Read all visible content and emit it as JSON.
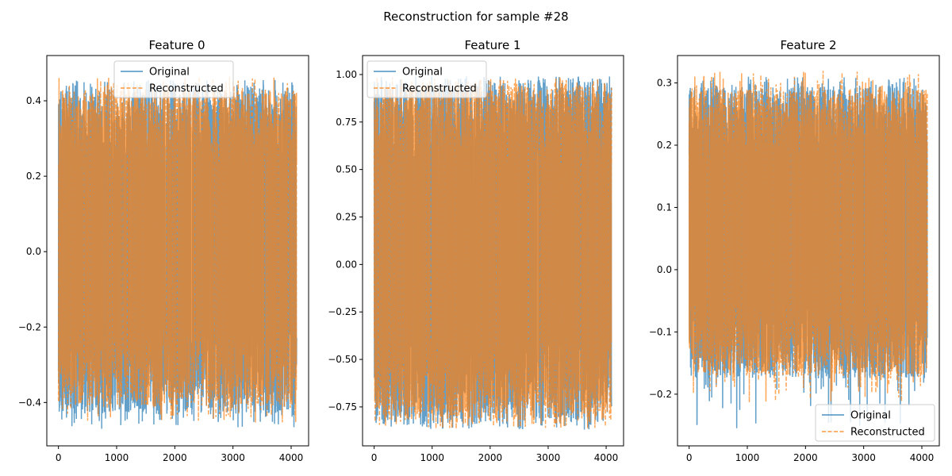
{
  "figure": {
    "suptitle": "Reconstruction for sample #28"
  },
  "colors": {
    "original": "#1f77b4",
    "reconstructed": "#ff7f0e"
  },
  "chart_data": [
    {
      "type": "line",
      "title": "Feature 0",
      "xlabel": "",
      "ylabel": "",
      "n_points": 4096,
      "xlim": [
        -200,
        4300
      ],
      "ylim": [
        -0.515,
        0.52
      ],
      "xticks": [
        0,
        1000,
        2000,
        3000,
        4000
      ],
      "xtick_labels": [
        "0",
        "1000",
        "2000",
        "3000",
        "4000"
      ],
      "yticks": [
        -0.4,
        -0.2,
        0.0,
        0.2,
        0.4
      ],
      "ytick_labels": [
        "−0.4",
        "−0.2",
        "0.0",
        "0.2",
        "0.4"
      ],
      "legend": {
        "position": "upper center",
        "entries": [
          "Original",
          "Reconstructed"
        ]
      },
      "series": [
        {
          "name": "Original",
          "style": "solid",
          "min": -0.47,
          "max": 0.455,
          "typical_low": -0.43,
          "typical_high": 0.43
        },
        {
          "name": "Reconstructed",
          "style": "dashed",
          "min": -0.455,
          "max": 0.465,
          "typical_low": -0.41,
          "typical_high": 0.43
        }
      ]
    },
    {
      "type": "line",
      "title": "Feature 1",
      "xlabel": "",
      "ylabel": "",
      "n_points": 4096,
      "xlim": [
        -200,
        4300
      ],
      "ylim": [
        -0.955,
        1.1
      ],
      "xticks": [
        0,
        1000,
        2000,
        3000,
        4000
      ],
      "xtick_labels": [
        "0",
        "1000",
        "2000",
        "3000",
        "4000"
      ],
      "yticks": [
        -0.75,
        -0.5,
        -0.25,
        0.0,
        0.25,
        0.5,
        0.75,
        1.0
      ],
      "ytick_labels": [
        "−0.75",
        "−0.50",
        "−0.25",
        "0.00",
        "0.25",
        "0.50",
        "0.75",
        "1.00"
      ],
      "legend": {
        "position": "upper left",
        "entries": [
          "Original",
          "Reconstructed"
        ]
      },
      "series": [
        {
          "name": "Original",
          "style": "solid",
          "min": -0.87,
          "max": 0.99,
          "typical_low": -0.83,
          "typical_high": 0.96
        },
        {
          "name": "Reconstructed",
          "style": "dashed",
          "min": -0.865,
          "max": 0.985,
          "typical_low": -0.82,
          "typical_high": 0.95
        }
      ]
    },
    {
      "type": "line",
      "title": "Feature 2",
      "xlabel": "",
      "ylabel": "",
      "n_points": 4096,
      "xlim": [
        -200,
        4300
      ],
      "ylim": [
        -0.283,
        0.344
      ],
      "xticks": [
        0,
        1000,
        2000,
        3000,
        4000
      ],
      "xtick_labels": [
        "0",
        "1000",
        "2000",
        "3000",
        "4000"
      ],
      "yticks": [
        -0.2,
        -0.1,
        0.0,
        0.1,
        0.2,
        0.3
      ],
      "ytick_labels": [
        "−0.2",
        "−0.1",
        "0.0",
        "0.1",
        "0.2",
        "0.3"
      ],
      "legend": {
        "position": "lower right",
        "entries": [
          "Original",
          "Reconstructed"
        ]
      },
      "series": [
        {
          "name": "Original",
          "style": "solid",
          "min": -0.255,
          "max": 0.31,
          "typical_low": -0.175,
          "typical_high": 0.295
        },
        {
          "name": "Reconstructed",
          "style": "dashed",
          "min": -0.215,
          "max": 0.32,
          "typical_low": -0.17,
          "typical_high": 0.29
        }
      ]
    }
  ]
}
